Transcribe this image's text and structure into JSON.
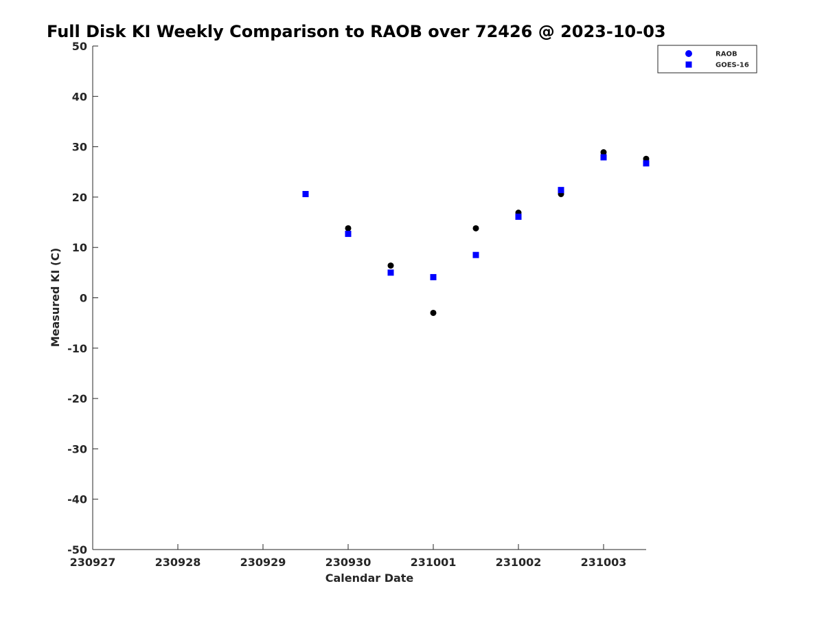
{
  "chart_data": {
    "type": "scatter",
    "title": "Full Disk KI Weekly Comparison to RAOB over 72426 @ 2023-10-03",
    "xlabel": "Calendar Date",
    "ylabel": "Measured KI (C)",
    "x_ticks": [
      "230927",
      "230928",
      "230929",
      "230930",
      "231001",
      "231002",
      "231003"
    ],
    "x_range_days": [
      0,
      6.5
    ],
    "y_ticks": [
      50,
      40,
      30,
      20,
      10,
      0,
      -10,
      -20,
      -30,
      -40,
      -50
    ],
    "ylim": [
      -50,
      50
    ],
    "grid": false,
    "legend_position": "top-right",
    "series": [
      {
        "name": "RAOB",
        "marker": "circle",
        "legend_color": "#0000ff",
        "point_color": "#000000",
        "x": [
          "2023-09-30 00Z",
          "2023-09-30 12Z",
          "2023-10-01 00Z",
          "2023-10-01 12Z",
          "2023-10-02 00Z",
          "2023-10-02 12Z",
          "2023-10-03 00Z",
          "2023-10-03 12Z"
        ],
        "x_days": [
          3.0,
          3.5,
          4.0,
          4.5,
          5.0,
          5.5,
          6.0,
          6.5
        ],
        "values": [
          13.8,
          6.4,
          -3.0,
          13.8,
          16.9,
          20.6,
          28.9,
          27.6
        ]
      },
      {
        "name": "GOES-16",
        "marker": "square",
        "legend_color": "#0000ff",
        "point_color": "#0000ff",
        "x": [
          "2023-09-29 12Z",
          "2023-09-30 00Z",
          "2023-09-30 12Z",
          "2023-10-01 00Z",
          "2023-10-01 12Z",
          "2023-10-02 00Z",
          "2023-10-02 12Z",
          "2023-10-03 00Z",
          "2023-10-03 12Z"
        ],
        "x_days": [
          2.5,
          3.0,
          3.5,
          4.0,
          4.5,
          5.0,
          5.5,
          6.0,
          6.5
        ],
        "values": [
          20.6,
          12.7,
          5.0,
          4.1,
          8.5,
          16.1,
          21.4,
          27.9,
          26.7
        ]
      }
    ]
  }
}
